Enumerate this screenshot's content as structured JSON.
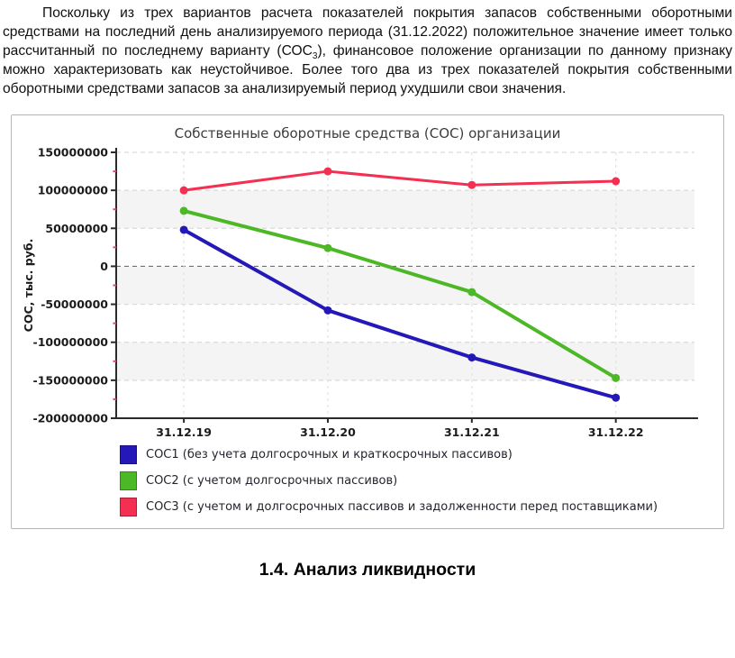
{
  "document": {
    "paragraph": {
      "text_before_sub": "Поскольку из трех вариантов расчета показателей покрытия запасов собственными оборотными средствами на последний день анализируемого периода (31.12.2022) положительное значение имеет только рассчитанный по последнему варианту (СОС",
      "sub": "3",
      "text_after_sub": "), финансовое положение организации по данному признаку можно характеризовать как неустойчивое. Более того два из трех показателей покрытия собственными оборотными средствами запасов за анализируемый период ухудшили свои значения."
    },
    "section_heading": "1.4. Анализ ликвидности"
  },
  "chart_data": {
    "type": "line",
    "title": "Собственные оборотные средства (СОС) организации",
    "xlabel": "",
    "ylabel": "СОС, тыс. руб.",
    "categories": [
      "31.12.19",
      "31.12.20",
      "31.12.21",
      "31.12.22"
    ],
    "series": [
      {
        "name": "СОС1 (без учета долгосрочных и краткосрочных пассивов)",
        "color": "#2419b8",
        "values": [
          48000000,
          -58000000,
          -120000000,
          -173000000
        ],
        "line_width": 4
      },
      {
        "name": "СОС2 (с учетом долгосрочных пассивов)",
        "color": "#4cb826",
        "values": [
          73000000,
          24000000,
          -34000000,
          -147000000
        ],
        "line_width": 4
      },
      {
        "name": "СОС3 (с учетом и долгосрочных пассивов и задолженности перед поставщиками)",
        "color": "#f42f51",
        "values": [
          100000000,
          125000000,
          107000000,
          112000000
        ],
        "line_width": 3
      }
    ],
    "ylim": [
      -200000000,
      150000000
    ],
    "ytick_step": 50000000,
    "ytick_labels": [
      "150000000",
      "100000000",
      "50000000",
      "0",
      "-50000000",
      "-100000000",
      "-150000000",
      "-200000000"
    ],
    "grid": true,
    "zero_line": true,
    "legend_position": "bottom-left",
    "band_pairs": [
      [
        100000000,
        50000000
      ],
      [
        0,
        -50000000
      ],
      [
        -100000000,
        -150000000
      ]
    ],
    "band_color": "#f4f4f4",
    "minor_tick_color": "#e04a5e"
  }
}
